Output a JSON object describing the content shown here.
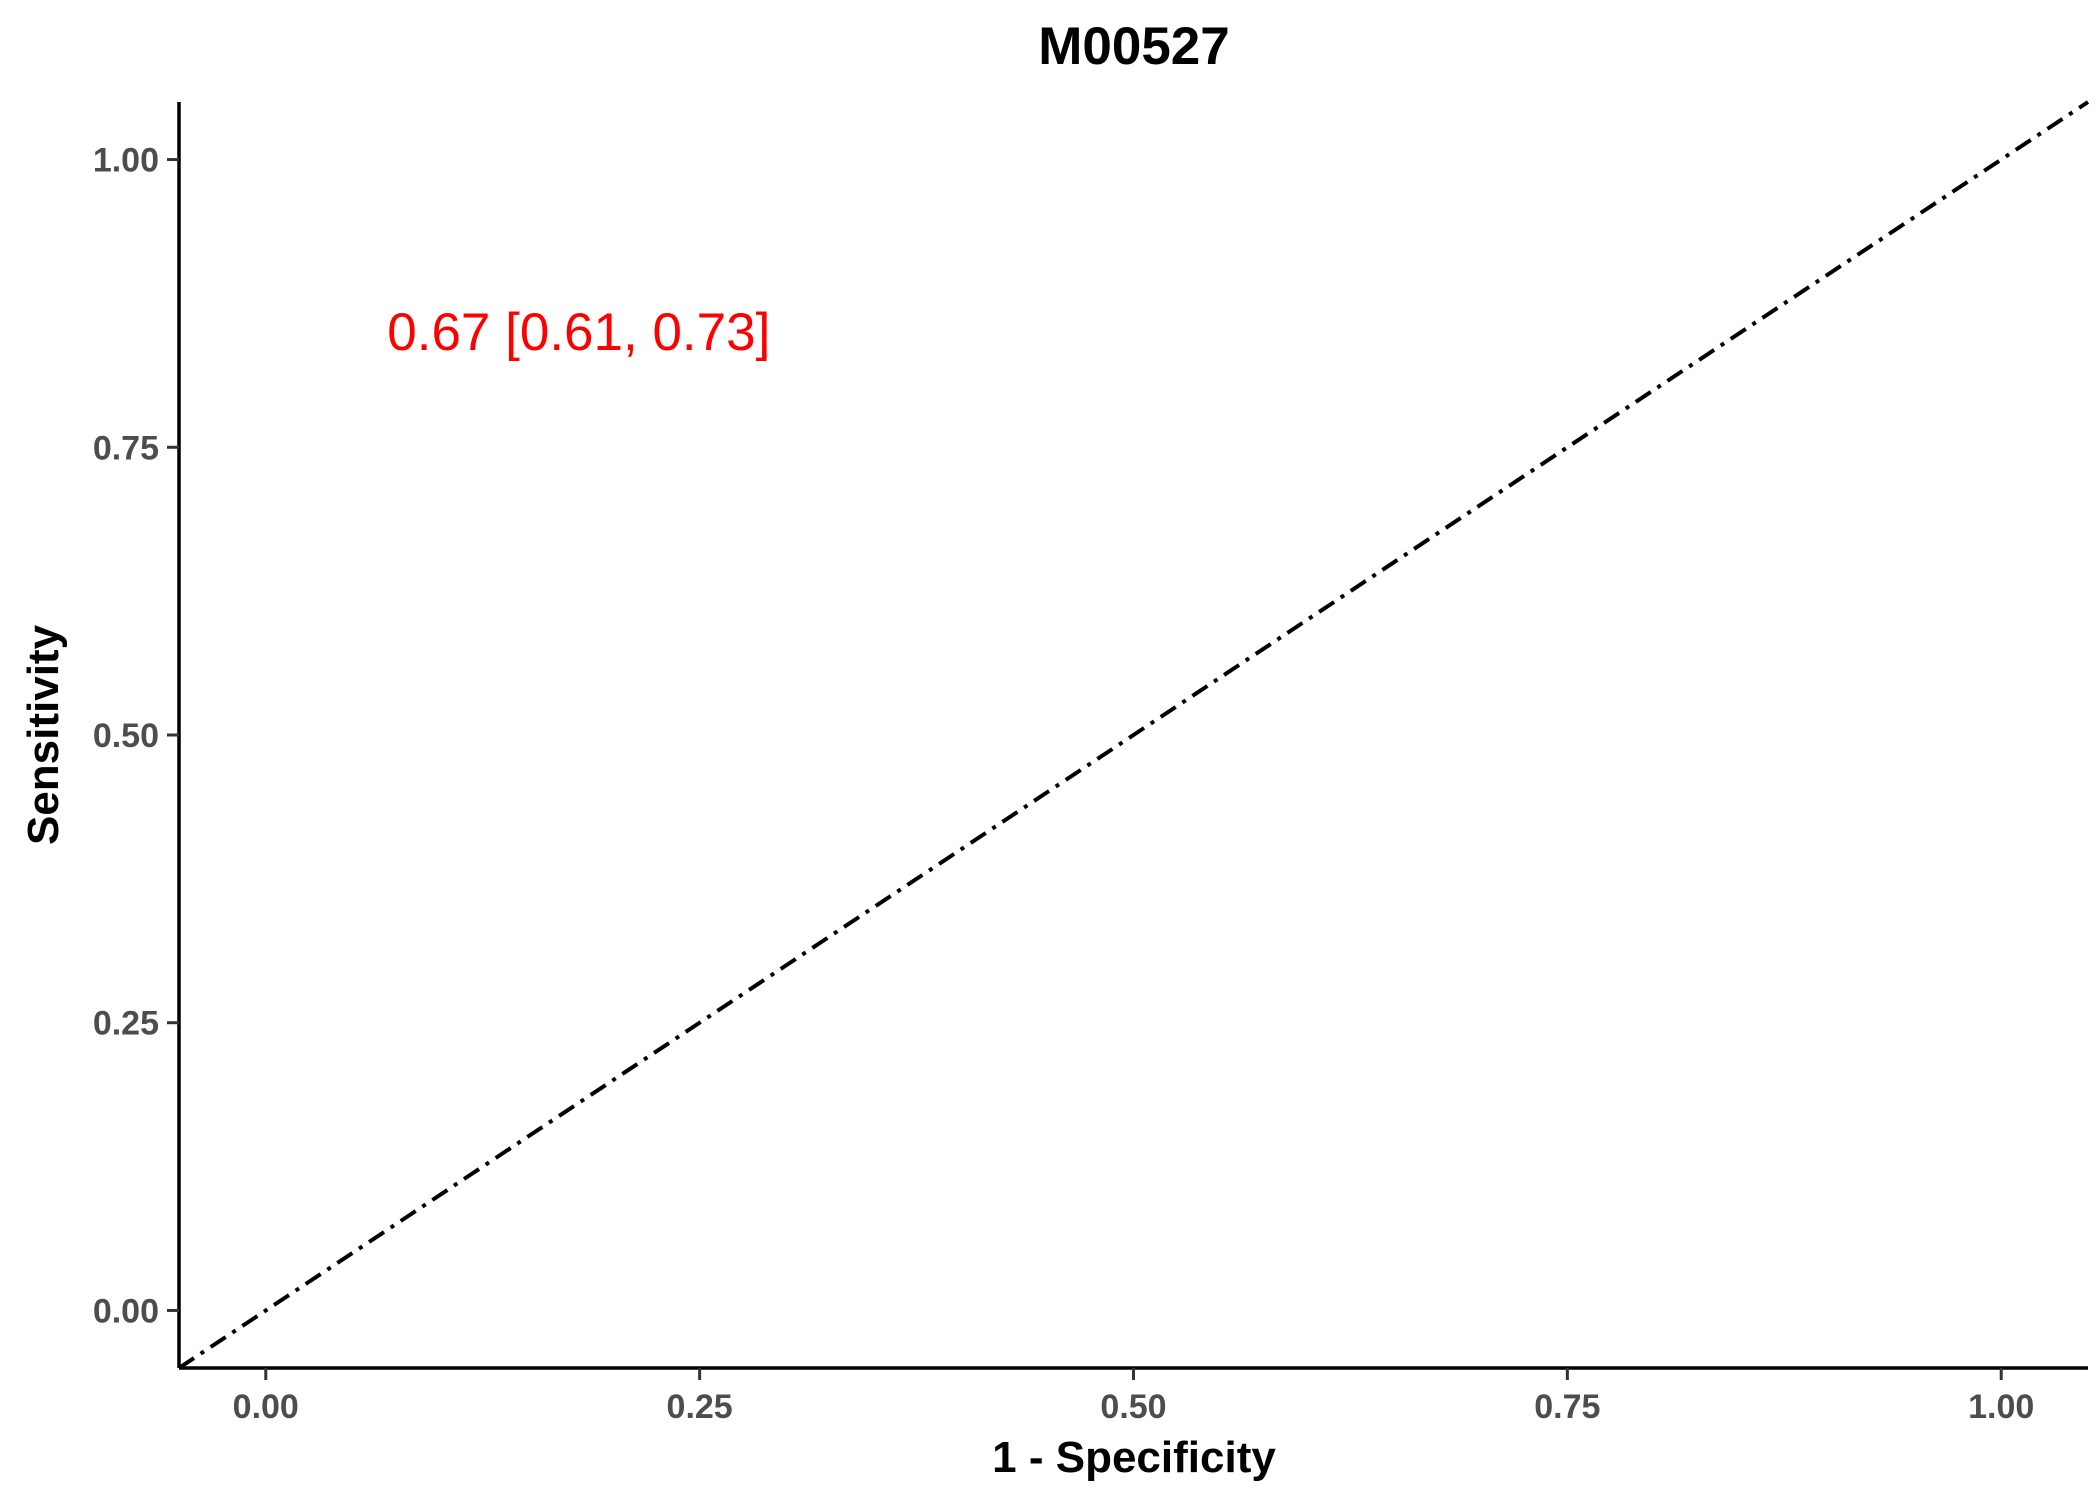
{
  "chart_data": {
    "type": "line",
    "title": "M00527",
    "xlabel": "1 - Specificity",
    "ylabel": "Sensitivity",
    "xlim": [
      -0.05,
      1.05
    ],
    "ylim": [
      -0.05,
      1.05
    ],
    "x_ticks": [
      "0.00",
      "0.25",
      "0.50",
      "0.75",
      "1.00"
    ],
    "y_ticks": [
      "0.00",
      "0.25",
      "0.50",
      "0.75",
      "1.00"
    ],
    "reference_line": {
      "from": [
        -0.05,
        -0.05
      ],
      "to": [
        1.05,
        1.05
      ],
      "style": "dotdash",
      "color": "#000000"
    },
    "annotation": {
      "text": "0.67 [0.61, 0.73]",
      "x": 0.07,
      "y": 0.85,
      "color": "#ff0000"
    },
    "grid": false,
    "legend": "none"
  }
}
